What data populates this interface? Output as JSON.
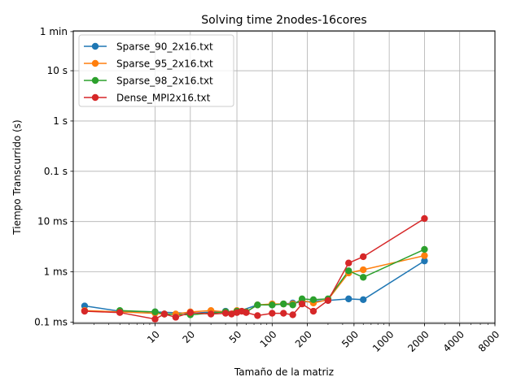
{
  "chart_data": {
    "type": "line",
    "title": "Solving time 2nodes-16cores",
    "xlabel": "Tamaño de la matriz",
    "ylabel": "Tiempo Transcurrido (s)",
    "xscale": "log",
    "yscale": "log",
    "xlim": [
      2.0,
      8000
    ],
    "ylim": [
      9.45e-05,
      62
    ],
    "grid": true,
    "legend_position": "top-left",
    "xticks": [
      {
        "value": 10,
        "label": "10"
      },
      {
        "value": 20,
        "label": "20"
      },
      {
        "value": 50,
        "label": "50"
      },
      {
        "value": 100,
        "label": "100"
      },
      {
        "value": 200,
        "label": "200"
      },
      {
        "value": 500,
        "label": "500"
      },
      {
        "value": 1000,
        "label": "1000"
      },
      {
        "value": 2000,
        "label": "2000"
      },
      {
        "value": 4000,
        "label": "4000"
      },
      {
        "value": 8000,
        "label": "8000"
      }
    ],
    "yticks": [
      {
        "value": 0.0001,
        "label": "0.1 ms"
      },
      {
        "value": 0.001,
        "label": "1 ms"
      },
      {
        "value": 0.01,
        "label": "10 ms"
      },
      {
        "value": 0.1,
        "label": "0.1 s"
      },
      {
        "value": 1,
        "label": "1 s"
      },
      {
        "value": 10,
        "label": "10 s"
      },
      {
        "value": 60,
        "label": "1 min"
      }
    ],
    "series": [
      {
        "name": "Sparse_90_2x16.txt",
        "color": "#1f77b4",
        "x": [
          2.5,
          5,
          10,
          20,
          40,
          50,
          75,
          100,
          125,
          150,
          180,
          225,
          300,
          450,
          600,
          2000
        ],
        "y": [
          0.00021,
          0.000165,
          0.00016,
          0.00015,
          0.000165,
          0.00016,
          0.00022,
          0.00022,
          0.00023,
          0.00024,
          0.00025,
          0.00026,
          0.00027,
          0.00029,
          0.00028,
          0.00165
        ]
      },
      {
        "name": "Sparse_95_2x16.txt",
        "color": "#ff7f0e",
        "x": [
          2.5,
          5,
          10,
          12,
          15,
          20,
          30,
          40,
          50,
          60,
          75,
          100,
          125,
          150,
          180,
          225,
          300,
          450,
          600,
          2000
        ],
        "y": [
          0.00017,
          0.00016,
          0.00015,
          0.000145,
          0.000145,
          0.00016,
          0.00017,
          0.00016,
          0.00017,
          0.00016,
          0.00022,
          0.00023,
          0.00023,
          0.00023,
          0.00027,
          0.00024,
          0.00028,
          0.00095,
          0.0011,
          0.0021
        ]
      },
      {
        "name": "Sparse_98_2x16.txt",
        "color": "#2ca02c",
        "x": [
          5,
          10,
          12,
          20,
          40,
          50,
          60,
          75,
          100,
          125,
          150,
          180,
          225,
          300,
          450,
          600,
          2000
        ],
        "y": [
          0.00017,
          0.00016,
          0.000145,
          0.00014,
          0.00016,
          0.000165,
          0.00016,
          0.00022,
          0.00022,
          0.00023,
          0.00022,
          0.00029,
          0.00028,
          0.00029,
          0.00105,
          0.00078,
          0.0028
        ]
      },
      {
        "name": "Dense_MPI2x16.txt",
        "color": "#d62728",
        "x": [
          2.5,
          5,
          10,
          12,
          15,
          20,
          30,
          40,
          45,
          50,
          55,
          60,
          75,
          100,
          125,
          150,
          180,
          225,
          300,
          450,
          600,
          2000
        ],
        "y": [
          0.000165,
          0.000155,
          0.000115,
          0.000145,
          0.000125,
          0.000155,
          0.000145,
          0.00015,
          0.000145,
          0.000155,
          0.000165,
          0.000155,
          0.000135,
          0.00015,
          0.00015,
          0.00014,
          0.00023,
          0.000165,
          0.00027,
          0.0015,
          0.002,
          0.0115
        ]
      }
    ]
  }
}
